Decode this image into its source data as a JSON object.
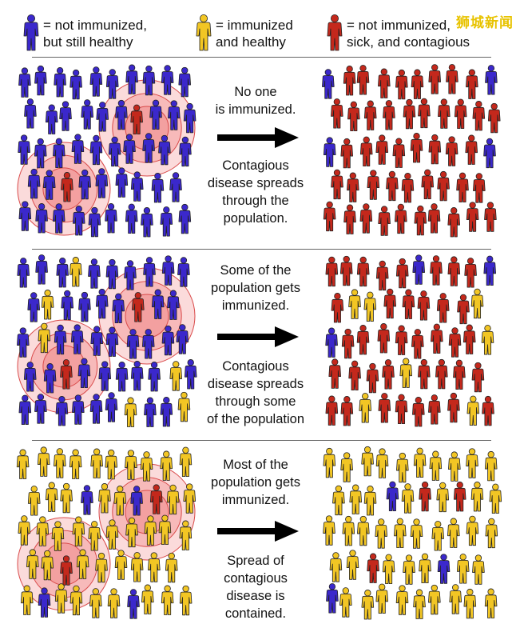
{
  "legend": [
    {
      "color": "#3b28cc",
      "text": "= not immunized,\nbut still healthy"
    },
    {
      "color": "#f2c624",
      "text": "= immunized\nand healthy"
    },
    {
      "color": "#c4281c",
      "text": "= not immunized,\nsick, and contagious"
    }
  ],
  "watermark": "狮城新闻",
  "colors": {
    "blue": "#3b28cc",
    "yellow": "#f2c624",
    "red": "#c4281c",
    "halo": "#f07f7f"
  },
  "panels": [
    {
      "top_text": "No one\nis immunized.",
      "bottom_text": "Contagious\ndisease spreads\nthrough the\npopulation.",
      "left_crowd": "mostly-blue",
      "right_crowd": "mostly-red"
    },
    {
      "top_text": "Some of the\npopulation gets\nimmunized.",
      "bottom_text": "Contagious\ndisease spreads\nthrough some\nof the population",
      "left_crowd": "blue-with-some-yellow",
      "right_crowd": "red-with-some-yellow"
    },
    {
      "top_text": "Most of the\npopulation gets\nimmunized.",
      "bottom_text": "Spread of\ncontagious\ndisease is\ncontained.",
      "left_crowd": "mostly-yellow",
      "right_crowd": "mostly-yellow"
    }
  ]
}
